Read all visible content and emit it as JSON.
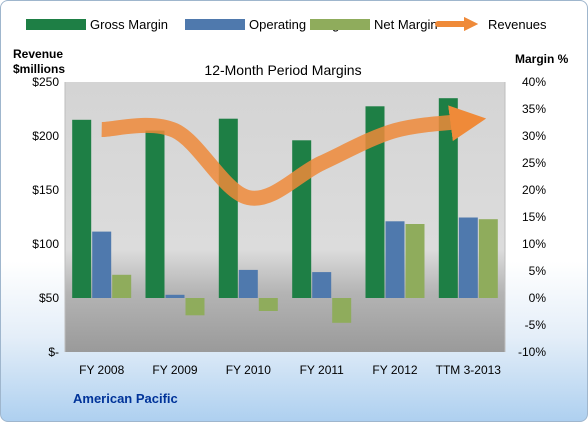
{
  "chart_data": {
    "type": "bar",
    "title": "12-Month Period Margins",
    "company": "American Pacific",
    "left_axis": {
      "label_line1": "Revenue",
      "label_line2": "$millions",
      "range": [
        0,
        250
      ],
      "ticks": [
        "$-",
        "$50",
        "$100",
        "$150",
        "$200",
        "$250"
      ]
    },
    "right_axis": {
      "label": "Margin %",
      "range": [
        -10,
        40
      ],
      "ticks": [
        "-10%",
        "-5%",
        "0%",
        "5%",
        "10%",
        "15%",
        "20%",
        "25%",
        "30%",
        "35%",
        "40%"
      ]
    },
    "categories": [
      "FY 2008",
      "FY 2009",
      "FY 2010",
      "FY 2011",
      "FY 2012",
      "TTM 3-2013"
    ],
    "series": [
      {
        "name": "Gross Margin",
        "axis": "right",
        "color": "#1e7f45",
        "values": [
          33.0,
          31.0,
          33.2,
          29.2,
          35.5,
          37.0
        ]
      },
      {
        "name": "Operating Margin",
        "axis": "right",
        "color": "#4f79ad",
        "values": [
          12.3,
          0.6,
          5.2,
          4.8,
          14.2,
          14.9
        ]
      },
      {
        "name": "Net Margin",
        "axis": "right",
        "color": "#8fac5c",
        "values": [
          4.3,
          -3.2,
          -2.4,
          -4.6,
          13.7,
          14.6
        ]
      },
      {
        "name": "Revenues",
        "axis": "left",
        "type": "line",
        "color": "#ef8a39",
        "values": [
          206,
          205,
          143,
          175,
          205,
          214
        ]
      }
    ],
    "legend_placement": "top",
    "grid": false
  }
}
